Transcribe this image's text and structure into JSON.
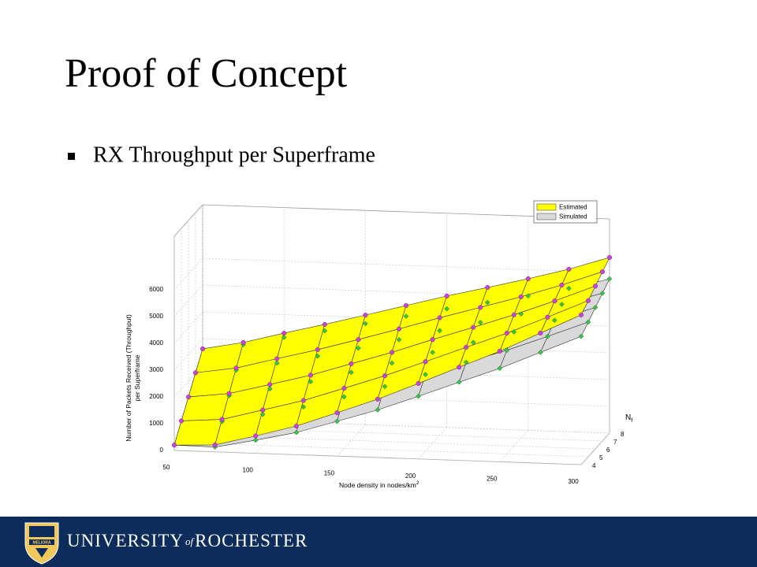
{
  "slide": {
    "title": "Proof of Concept",
    "bullets": [
      "RX Throughput per Superframe"
    ]
  },
  "chart_data": {
    "type": "surface3d",
    "x_label": {
      "text": "Node density in nodes/km",
      "superscript": "2"
    },
    "z_label": [
      "Number of Packets Received (Throughput)",
      "per Superframe"
    ],
    "nf_label": {
      "text": "N",
      "subscript": "f"
    },
    "x": [
      50,
      75,
      100,
      125,
      150,
      175,
      200,
      225,
      250,
      275,
      300
    ],
    "nf": [
      4,
      5,
      6,
      7,
      8
    ],
    "xlim": [
      50,
      300
    ],
    "xticks": [
      50,
      100,
      150,
      200,
      250,
      300
    ],
    "nflim": [
      4,
      8
    ],
    "nfticks": [
      4,
      5,
      6,
      7,
      8
    ],
    "zlim": [
      0,
      8000
    ],
    "zticks": [
      0,
      1000,
      2000,
      3000,
      4000,
      5000,
      6000
    ],
    "grid": true,
    "legend": "top-right",
    "series": [
      {
        "name": "Estimated",
        "color": "#ffff00",
        "marker_color": "#d23fe6",
        "values": [
          [
            200,
            260,
            650,
            1070,
            1620,
            2180,
            2820,
            3480,
            4130,
            4860,
            5590
          ],
          [
            810,
            920,
            1320,
            1730,
            2240,
            2760,
            3340,
            3930,
            4510,
            5160,
            5830
          ],
          [
            1410,
            1590,
            1980,
            2380,
            2860,
            3340,
            3870,
            4380,
            4900,
            5470,
            6080
          ],
          [
            2020,
            2250,
            2650,
            3040,
            3470,
            3920,
            4390,
            4830,
            5280,
            5770,
            6320
          ],
          [
            2620,
            2910,
            3310,
            3690,
            4090,
            4500,
            4910,
            5280,
            5660,
            6070,
            6560
          ]
        ]
      },
      {
        "name": "Simulated",
        "color": "#d9d9d9",
        "marker_color": "#2ecc40",
        "values": [
          [
            200,
            180,
            490,
            830,
            1300,
            1780,
            2340,
            2920,
            3490,
            4140,
            4790
          ],
          [
            810,
            840,
            1160,
            1490,
            1920,
            2360,
            2860,
            3370,
            3870,
            4440,
            5030
          ],
          [
            1410,
            1510,
            1820,
            2140,
            2540,
            2940,
            3390,
            3820,
            4260,
            4750,
            5280
          ],
          [
            2020,
            2170,
            2490,
            2800,
            3150,
            3520,
            3910,
            4270,
            4640,
            5050,
            5520
          ],
          [
            2620,
            2830,
            3150,
            3450,
            3770,
            4100,
            4430,
            4720,
            5020,
            5350,
            5760
          ]
        ]
      }
    ]
  },
  "footer": {
    "crest_motto": "MELIORA",
    "university": [
      "UNIVERSITY",
      "of",
      "ROCHESTER"
    ]
  }
}
